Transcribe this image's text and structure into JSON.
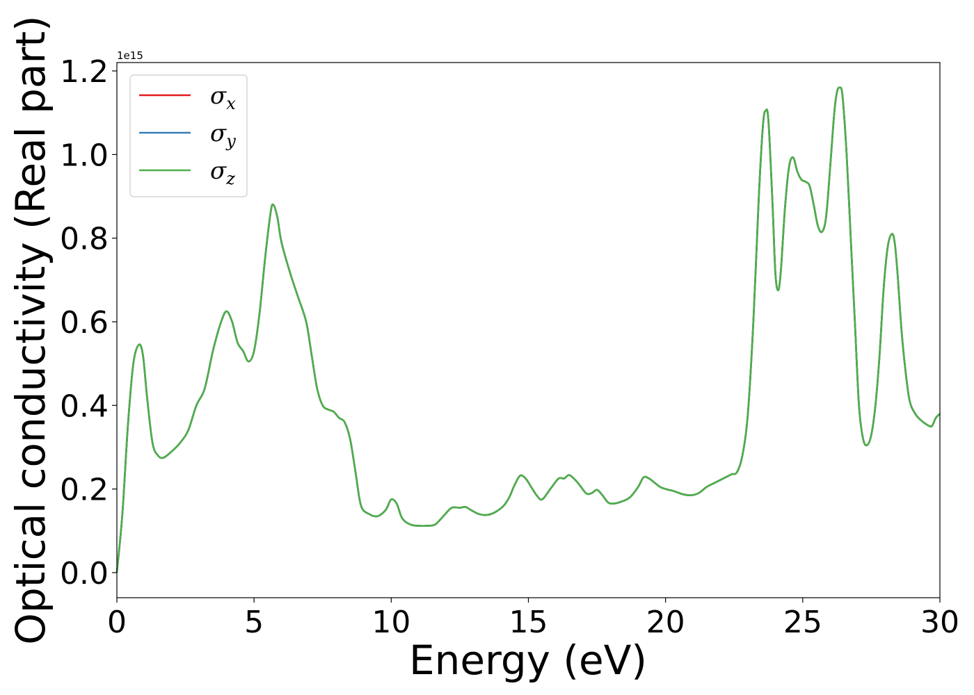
{
  "chart_data": {
    "type": "line",
    "xlabel": "Energy (eV)",
    "ylabel": "Optical conductivity (Real part)",
    "y_offset_label": "1e15",
    "xlim": [
      0,
      30
    ],
    "ylim": [
      -0.06,
      1.22
    ],
    "y_scale_factor": 1000000000000000.0,
    "x_ticks": [
      0,
      5,
      10,
      15,
      20,
      25,
      30
    ],
    "x_tick_labels": [
      "0",
      "5",
      "10",
      "15",
      "20",
      "25",
      "30"
    ],
    "y_ticks": [
      0.0,
      0.2,
      0.4,
      0.6,
      0.8,
      1.0,
      1.2
    ],
    "y_tick_labels": [
      "0.0",
      "0.2",
      "0.4",
      "0.6",
      "0.8",
      "1.0",
      "1.2"
    ],
    "grid": false,
    "legend_position": "top-left",
    "x": [
      0,
      0.2,
      0.4,
      0.6,
      0.8,
      0.95,
      1.1,
      1.3,
      1.5,
      1.7,
      2.0,
      2.3,
      2.6,
      2.9,
      3.2,
      3.5,
      3.8,
      4.0,
      4.2,
      4.4,
      4.6,
      4.8,
      5.0,
      5.2,
      5.4,
      5.6,
      5.7,
      5.85,
      6.0,
      6.3,
      6.6,
      6.9,
      7.1,
      7.3,
      7.5,
      7.7,
      7.9,
      8.1,
      8.3,
      8.5,
      8.7,
      8.9,
      9.2,
      9.5,
      9.8,
      10.0,
      10.2,
      10.4,
      10.7,
      11.0,
      11.3,
      11.6,
      11.9,
      12.2,
      12.5,
      12.7,
      12.9,
      13.2,
      13.5,
      13.8,
      14.1,
      14.3,
      14.5,
      14.7,
      14.9,
      15.1,
      15.3,
      15.5,
      15.8,
      16.1,
      16.3,
      16.5,
      16.8,
      17.1,
      17.3,
      17.5,
      17.7,
      17.9,
      18.1,
      18.4,
      18.7,
      19.0,
      19.2,
      19.4,
      19.6,
      19.8,
      20.0,
      20.3,
      20.6,
      20.9,
      21.2,
      21.5,
      21.8,
      22.1,
      22.4,
      22.6,
      22.8,
      23.0,
      23.2,
      23.4,
      23.55,
      23.65,
      23.75,
      23.9,
      24.0,
      24.1,
      24.2,
      24.35,
      24.5,
      24.65,
      24.8,
      24.95,
      25.1,
      25.25,
      25.4,
      25.55,
      25.7,
      25.85,
      26.0,
      26.15,
      26.25,
      26.35,
      26.45,
      26.6,
      26.75,
      26.9,
      27.05,
      27.2,
      27.35,
      27.5,
      27.65,
      27.8,
      27.95,
      28.1,
      28.25,
      28.35,
      28.45,
      28.6,
      28.75,
      28.9,
      29.1,
      29.3,
      29.5,
      29.7,
      29.85,
      30.0
    ],
    "series": [
      {
        "name": "σx",
        "symbol": "σ",
        "subscript": "x",
        "color": "#e41a1c",
        "values": [
          0.0,
          0.14,
          0.35,
          0.5,
          0.545,
          0.52,
          0.42,
          0.31,
          0.28,
          0.275,
          0.29,
          0.31,
          0.34,
          0.4,
          0.44,
          0.53,
          0.6,
          0.625,
          0.6,
          0.55,
          0.53,
          0.505,
          0.53,
          0.62,
          0.75,
          0.86,
          0.88,
          0.85,
          0.79,
          0.72,
          0.66,
          0.6,
          0.52,
          0.44,
          0.4,
          0.39,
          0.385,
          0.37,
          0.36,
          0.32,
          0.24,
          0.16,
          0.14,
          0.135,
          0.15,
          0.175,
          0.165,
          0.13,
          0.115,
          0.112,
          0.112,
          0.115,
          0.135,
          0.155,
          0.155,
          0.157,
          0.15,
          0.14,
          0.138,
          0.145,
          0.16,
          0.18,
          0.21,
          0.232,
          0.225,
          0.205,
          0.185,
          0.175,
          0.2,
          0.225,
          0.225,
          0.233,
          0.215,
          0.19,
          0.19,
          0.198,
          0.185,
          0.168,
          0.165,
          0.17,
          0.18,
          0.205,
          0.228,
          0.225,
          0.215,
          0.205,
          0.2,
          0.195,
          0.188,
          0.185,
          0.19,
          0.205,
          0.215,
          0.225,
          0.235,
          0.24,
          0.28,
          0.38,
          0.6,
          0.9,
          1.07,
          1.105,
          1.08,
          0.88,
          0.72,
          0.675,
          0.72,
          0.87,
          0.97,
          0.993,
          0.96,
          0.94,
          0.935,
          0.925,
          0.88,
          0.83,
          0.815,
          0.85,
          0.97,
          1.1,
          1.15,
          1.16,
          1.14,
          1.0,
          0.8,
          0.6,
          0.4,
          0.32,
          0.305,
          0.33,
          0.4,
          0.52,
          0.68,
          0.78,
          0.81,
          0.79,
          0.72,
          0.58,
          0.48,
          0.41,
          0.38,
          0.365,
          0.355,
          0.35,
          0.37,
          0.38
        ]
      },
      {
        "name": "σy",
        "symbol": "σ",
        "subscript": "y",
        "color": "#377eb8",
        "values": [
          0.0,
          0.14,
          0.35,
          0.5,
          0.545,
          0.52,
          0.42,
          0.31,
          0.28,
          0.275,
          0.29,
          0.31,
          0.34,
          0.4,
          0.44,
          0.53,
          0.6,
          0.625,
          0.6,
          0.55,
          0.53,
          0.505,
          0.53,
          0.62,
          0.75,
          0.86,
          0.88,
          0.85,
          0.79,
          0.72,
          0.66,
          0.6,
          0.52,
          0.44,
          0.4,
          0.39,
          0.385,
          0.37,
          0.36,
          0.32,
          0.24,
          0.16,
          0.14,
          0.135,
          0.15,
          0.175,
          0.165,
          0.13,
          0.115,
          0.112,
          0.112,
          0.115,
          0.135,
          0.155,
          0.155,
          0.157,
          0.15,
          0.14,
          0.138,
          0.145,
          0.16,
          0.18,
          0.21,
          0.232,
          0.225,
          0.205,
          0.185,
          0.175,
          0.2,
          0.225,
          0.225,
          0.233,
          0.215,
          0.19,
          0.19,
          0.198,
          0.185,
          0.168,
          0.165,
          0.17,
          0.18,
          0.205,
          0.228,
          0.225,
          0.215,
          0.205,
          0.2,
          0.195,
          0.188,
          0.185,
          0.19,
          0.205,
          0.215,
          0.225,
          0.235,
          0.24,
          0.28,
          0.38,
          0.6,
          0.9,
          1.07,
          1.105,
          1.08,
          0.88,
          0.72,
          0.675,
          0.72,
          0.87,
          0.97,
          0.993,
          0.96,
          0.94,
          0.935,
          0.925,
          0.88,
          0.83,
          0.815,
          0.85,
          0.97,
          1.1,
          1.15,
          1.16,
          1.14,
          1.0,
          0.8,
          0.6,
          0.4,
          0.32,
          0.305,
          0.33,
          0.4,
          0.52,
          0.68,
          0.78,
          0.81,
          0.79,
          0.72,
          0.58,
          0.48,
          0.41,
          0.38,
          0.365,
          0.355,
          0.35,
          0.37,
          0.38
        ]
      },
      {
        "name": "σz",
        "symbol": "σ",
        "subscript": "z",
        "color": "#4daf4a",
        "values": [
          0.0,
          0.14,
          0.35,
          0.5,
          0.545,
          0.52,
          0.42,
          0.31,
          0.28,
          0.275,
          0.29,
          0.31,
          0.34,
          0.4,
          0.44,
          0.53,
          0.6,
          0.625,
          0.6,
          0.55,
          0.53,
          0.505,
          0.53,
          0.62,
          0.75,
          0.86,
          0.88,
          0.85,
          0.79,
          0.72,
          0.66,
          0.6,
          0.52,
          0.44,
          0.4,
          0.39,
          0.385,
          0.37,
          0.36,
          0.32,
          0.24,
          0.16,
          0.14,
          0.135,
          0.15,
          0.175,
          0.165,
          0.13,
          0.115,
          0.112,
          0.112,
          0.115,
          0.135,
          0.155,
          0.155,
          0.157,
          0.15,
          0.14,
          0.138,
          0.145,
          0.16,
          0.18,
          0.21,
          0.232,
          0.225,
          0.205,
          0.185,
          0.175,
          0.2,
          0.225,
          0.225,
          0.233,
          0.215,
          0.19,
          0.19,
          0.198,
          0.185,
          0.168,
          0.165,
          0.17,
          0.18,
          0.205,
          0.228,
          0.225,
          0.215,
          0.205,
          0.2,
          0.195,
          0.188,
          0.185,
          0.19,
          0.205,
          0.215,
          0.225,
          0.235,
          0.24,
          0.28,
          0.38,
          0.6,
          0.9,
          1.07,
          1.105,
          1.08,
          0.88,
          0.72,
          0.675,
          0.72,
          0.87,
          0.97,
          0.993,
          0.96,
          0.94,
          0.935,
          0.925,
          0.88,
          0.83,
          0.815,
          0.85,
          0.97,
          1.1,
          1.15,
          1.16,
          1.14,
          1.0,
          0.8,
          0.6,
          0.4,
          0.32,
          0.305,
          0.33,
          0.4,
          0.52,
          0.68,
          0.78,
          0.81,
          0.79,
          0.72,
          0.58,
          0.48,
          0.41,
          0.38,
          0.365,
          0.355,
          0.35,
          0.37,
          0.38
        ]
      }
    ]
  }
}
